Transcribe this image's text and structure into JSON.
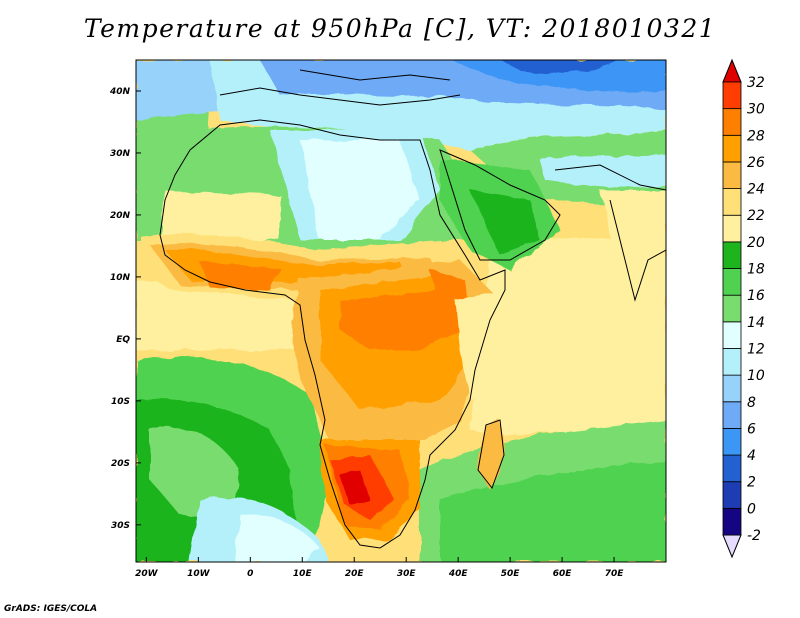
{
  "title": "Temperature at 950hPa [C], VT: 2018010321",
  "credit": "GrADS: IGES/COLA",
  "map": {
    "lon_range": [
      -22,
      80
    ],
    "lat_range": [
      -36,
      45
    ],
    "lon_ticks": [
      {
        "v": -20,
        "label": "20W"
      },
      {
        "v": -10,
        "label": "10W"
      },
      {
        "v": 0,
        "label": "0"
      },
      {
        "v": 10,
        "label": "10E"
      },
      {
        "v": 20,
        "label": "20E"
      },
      {
        "v": 30,
        "label": "30E"
      },
      {
        "v": 40,
        "label": "40E"
      },
      {
        "v": 50,
        "label": "50E"
      },
      {
        "v": 60,
        "label": "60E"
      },
      {
        "v": 70,
        "label": "70E"
      }
    ],
    "lat_ticks": [
      {
        "v": 40,
        "label": "40N"
      },
      {
        "v": 30,
        "label": "30N"
      },
      {
        "v": 20,
        "label": "20N"
      },
      {
        "v": 10,
        "label": "10N"
      },
      {
        "v": 0,
        "label": "EQ"
      },
      {
        "v": -10,
        "label": "10S"
      },
      {
        "v": -20,
        "label": "20S"
      },
      {
        "v": -30,
        "label": "30S"
      }
    ]
  },
  "colorbar": {
    "levels": [
      "-2",
      "0",
      "2",
      "4",
      "6",
      "8",
      "10",
      "12",
      "14",
      "16",
      "18",
      "20",
      "22",
      "24",
      "26",
      "28",
      "30",
      "32"
    ],
    "colors": [
      "#160582",
      "#1e3cb4",
      "#2361d2",
      "#3c96f5",
      "#6eaaf5",
      "#96d2fa",
      "#b4f0fa",
      "#e1ffff",
      "#78dc6e",
      "#50d250",
      "#1eb41e",
      "#fff0a0",
      "#ffe078",
      "#fbbb43",
      "#ff9f00",
      "#ff7f00",
      "#ff3d00"
    ],
    "under_color": "#e6dcff",
    "over_color": "#e10000"
  }
}
